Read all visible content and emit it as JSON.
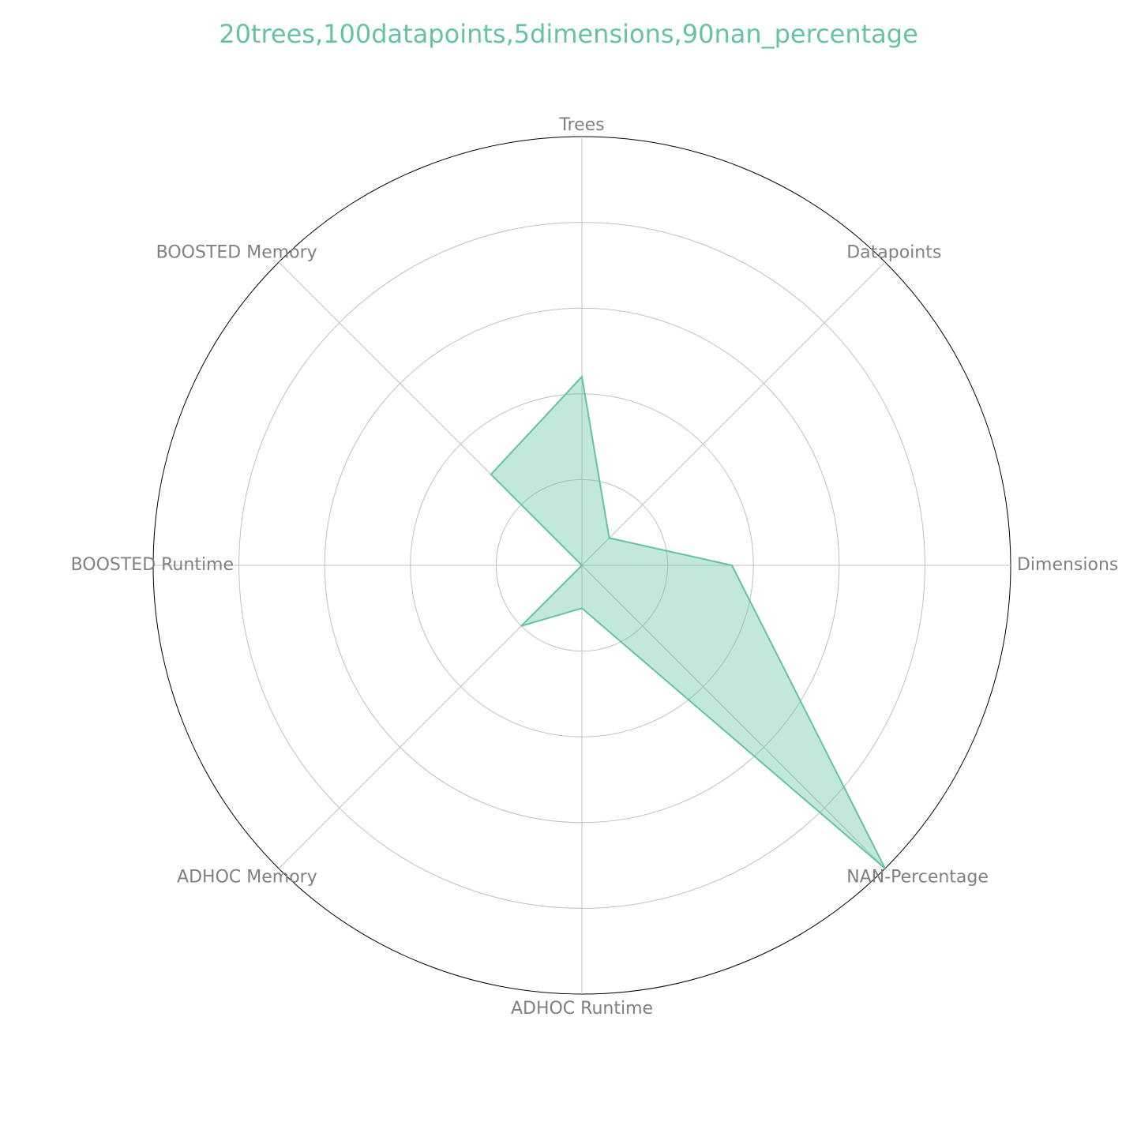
{
  "colors": {
    "series": "#66c2a5",
    "series_fill": "#66c2a5",
    "label": "#808080",
    "grid": "#c0c0c0",
    "outer": "#000000"
  },
  "chart_data": {
    "type": "radar",
    "title": "20trees,100datapoints,5dimensions,90nan_percentage",
    "axes": [
      "Trees",
      "Datapoints",
      "Dimensions",
      "NAN-Percentage",
      "ADHOC Runtime",
      "ADHOC Memory",
      "BOOSTED Runtime",
      "BOOSTED Memory"
    ],
    "rlim": [
      0,
      1
    ],
    "rgrid": [
      0.2,
      0.4,
      0.6,
      0.8,
      1.0
    ],
    "grid": true,
    "series": [
      {
        "values": [
          0.44,
          0.09,
          0.35,
          1.0,
          0.1,
          0.2,
          0.0,
          0.3
        ]
      }
    ]
  }
}
